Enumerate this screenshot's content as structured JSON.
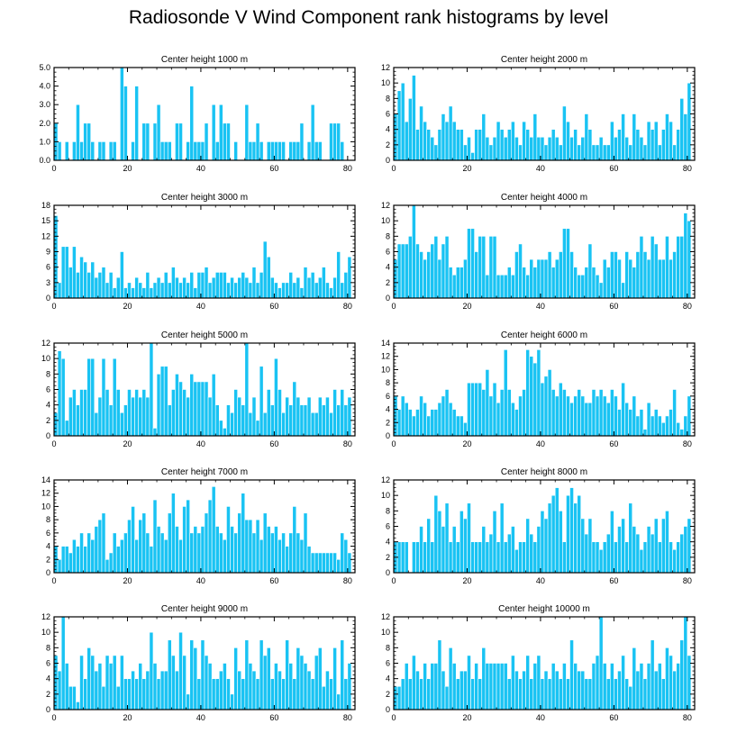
{
  "title": "Radiosonde V Wind Component rank histograms by level",
  "style": {
    "bar_color": "#19c3f3",
    "bar_edge": "#ffffff",
    "axis_color": "#000000"
  },
  "chart_data": [
    {
      "type": "bar",
      "title": "Center height 1000 m",
      "xlim": [
        0,
        82
      ],
      "ylim": [
        0,
        5
      ],
      "xticks": [
        0,
        20,
        40,
        60,
        80
      ],
      "yticks": [
        0,
        1,
        2,
        3,
        4,
        5
      ],
      "ytick_labels": [
        "0.0",
        "1.0",
        "2.0",
        "3.0",
        "4.0",
        "5.0"
      ],
      "values": [
        2,
        1,
        0,
        1,
        0,
        1,
        3,
        1,
        2,
        2,
        1,
        0,
        1,
        1,
        0,
        1,
        1,
        0,
        5,
        4,
        0,
        1,
        4,
        0,
        2,
        2,
        0,
        2,
        3,
        1,
        1,
        1,
        0,
        2,
        2,
        0,
        1,
        4,
        1,
        1,
        1,
        2,
        0,
        3,
        1,
        3,
        2,
        2,
        0,
        1,
        0,
        0,
        3,
        1,
        1,
        2,
        1,
        0,
        1,
        1,
        1,
        1,
        1,
        0,
        1,
        1,
        1,
        2,
        0,
        1,
        3,
        1,
        1,
        0,
        0,
        2,
        2,
        2,
        1,
        0,
        0
      ]
    },
    {
      "type": "bar",
      "title": "Center height 2000 m",
      "xlim": [
        0,
        82
      ],
      "ylim": [
        0,
        12
      ],
      "xticks": [
        0,
        20,
        40,
        60,
        80
      ],
      "yticks": [
        0,
        2,
        4,
        6,
        8,
        10,
        12
      ],
      "ytick_labels": [
        "0",
        "2",
        "4",
        "6",
        "8",
        "10",
        "12"
      ],
      "values": [
        6,
        9,
        10,
        5,
        8,
        11,
        4,
        7,
        5,
        4,
        3,
        2,
        4,
        6,
        5,
        7,
        5,
        4,
        4,
        2,
        3,
        1,
        4,
        4,
        6,
        3,
        2,
        3,
        5,
        4,
        3,
        4,
        5,
        3,
        2,
        5,
        4,
        3,
        6,
        3,
        3,
        2,
        3,
        4,
        3,
        2,
        7,
        5,
        3,
        4,
        2,
        3,
        6,
        4,
        2,
        2,
        3,
        2,
        2,
        5,
        3,
        4,
        6,
        3,
        2,
        6,
        4,
        3,
        2,
        5,
        4,
        5,
        2,
        4,
        6,
        5,
        2,
        4,
        8,
        6,
        10
      ]
    },
    {
      "type": "bar",
      "title": "Center height 3000 m",
      "xlim": [
        0,
        82
      ],
      "ylim": [
        0,
        18
      ],
      "xticks": [
        0,
        20,
        40,
        60,
        80
      ],
      "yticks": [
        0,
        3,
        6,
        9,
        12,
        15,
        18
      ],
      "ytick_labels": [
        "0",
        "3",
        "6",
        "9",
        "12",
        "15",
        "18"
      ],
      "values": [
        16,
        3,
        10,
        10,
        6,
        10,
        5,
        8,
        7,
        5,
        7,
        4,
        5,
        6,
        3,
        5,
        2,
        4,
        9,
        2,
        3,
        2,
        4,
        3,
        2,
        5,
        2,
        3,
        4,
        3,
        5,
        3,
        6,
        4,
        3,
        4,
        3,
        5,
        2,
        5,
        5,
        6,
        3,
        4,
        5,
        5,
        5,
        3,
        4,
        3,
        4,
        5,
        4,
        3,
        6,
        3,
        5,
        11,
        8,
        4,
        3,
        2,
        3,
        3,
        5,
        3,
        4,
        2,
        6,
        4,
        5,
        3,
        4,
        6,
        3,
        2,
        4,
        9,
        3,
        5,
        8
      ]
    },
    {
      "type": "bar",
      "title": "Center height 4000 m",
      "xlim": [
        0,
        82
      ],
      "ylim": [
        0,
        12
      ],
      "xticks": [
        0,
        20,
        40,
        60,
        80
      ],
      "yticks": [
        0,
        2,
        4,
        6,
        8,
        10,
        12
      ],
      "ytick_labels": [
        "0",
        "2",
        "4",
        "6",
        "8",
        "10",
        "12"
      ],
      "values": [
        5,
        7,
        7,
        7,
        8,
        12,
        7,
        6,
        5,
        6,
        7,
        8,
        5,
        7,
        8,
        4,
        3,
        4,
        4,
        5,
        9,
        9,
        6,
        8,
        8,
        3,
        8,
        8,
        3,
        3,
        3,
        4,
        3,
        6,
        7,
        4,
        3,
        5,
        4,
        5,
        5,
        5,
        6,
        4,
        5,
        6,
        9,
        9,
        6,
        4,
        3,
        3,
        4,
        7,
        4,
        3,
        2,
        5,
        4,
        6,
        6,
        5,
        2,
        6,
        5,
        4,
        6,
        8,
        6,
        5,
        8,
        7,
        5,
        5,
        8,
        5,
        6,
        8,
        8,
        11,
        10
      ]
    },
    {
      "type": "bar",
      "title": "Center height 5000 m",
      "xlim": [
        0,
        82
      ],
      "ylim": [
        0,
        12
      ],
      "xticks": [
        0,
        20,
        40,
        60,
        80
      ],
      "yticks": [
        0,
        2,
        4,
        6,
        8,
        10,
        12
      ],
      "ytick_labels": [
        "0",
        "2",
        "4",
        "6",
        "8",
        "10",
        "12"
      ],
      "values": [
        3,
        11,
        10,
        2,
        5,
        6,
        4,
        6,
        6,
        10,
        10,
        3,
        5,
        10,
        6,
        4,
        10,
        6,
        3,
        4,
        6,
        5,
        6,
        5,
        6,
        5,
        12,
        1,
        8,
        9,
        9,
        4,
        6,
        8,
        7,
        6,
        5,
        8,
        7,
        7,
        7,
        7,
        5,
        8,
        4,
        2,
        1,
        4,
        3,
        6,
        5,
        4,
        12,
        3,
        5,
        2,
        9,
        3,
        6,
        4,
        10,
        6,
        3,
        5,
        4,
        7,
        5,
        4,
        4,
        5,
        3,
        3,
        5,
        4,
        5,
        3,
        6,
        4,
        6,
        4,
        5
      ]
    },
    {
      "type": "bar",
      "title": "Center height 6000 m",
      "xlim": [
        0,
        82
      ],
      "ylim": [
        0,
        14
      ],
      "xticks": [
        0,
        20,
        40,
        60,
        80
      ],
      "yticks": [
        0,
        2,
        4,
        6,
        8,
        10,
        12,
        14
      ],
      "ytick_labels": [
        "0",
        "2",
        "4",
        "6",
        "8",
        "10",
        "12",
        "14"
      ],
      "values": [
        6,
        4,
        6,
        5,
        4,
        3,
        4,
        6,
        5,
        3,
        4,
        4,
        5,
        6,
        7,
        5,
        4,
        3,
        3,
        2,
        8,
        8,
        8,
        8,
        7,
        10,
        6,
        8,
        5,
        7,
        13,
        7,
        5,
        4,
        6,
        7,
        13,
        12,
        11,
        13,
        8,
        9,
        10,
        7,
        6,
        8,
        7,
        6,
        5,
        6,
        7,
        6,
        5,
        5,
        7,
        6,
        7,
        6,
        5,
        7,
        6,
        4,
        8,
        5,
        4,
        6,
        3,
        4,
        1,
        5,
        3,
        4,
        3,
        2,
        3,
        4,
        7,
        2,
        1,
        3,
        6
      ]
    },
    {
      "type": "bar",
      "title": "Center height 7000 m",
      "xlim": [
        0,
        82
      ],
      "ylim": [
        0,
        14
      ],
      "xticks": [
        0,
        20,
        40,
        60,
        80
      ],
      "yticks": [
        0,
        2,
        4,
        6,
        8,
        10,
        12,
        14
      ],
      "ytick_labels": [
        "0",
        "2",
        "4",
        "6",
        "8",
        "10",
        "12",
        "14"
      ],
      "values": [
        4,
        2,
        4,
        4,
        3,
        5,
        4,
        6,
        4,
        6,
        5,
        7,
        8,
        9,
        2,
        3,
        6,
        4,
        5,
        6,
        8,
        10,
        5,
        8,
        9,
        6,
        4,
        11,
        7,
        6,
        5,
        9,
        12,
        7,
        5,
        10,
        11,
        6,
        7,
        6,
        7,
        9,
        11,
        13,
        7,
        6,
        5,
        10,
        7,
        6,
        9,
        12,
        8,
        8,
        6,
        8,
        5,
        9,
        7,
        6,
        7,
        5,
        6,
        4,
        6,
        10,
        6,
        5,
        9,
        4,
        3,
        3,
        3,
        3,
        3,
        3,
        3,
        2,
        6,
        5,
        3
      ]
    },
    {
      "type": "bar",
      "title": "Center height 8000 m",
      "xlim": [
        0,
        82
      ],
      "ylim": [
        0,
        12
      ],
      "xticks": [
        0,
        20,
        40,
        60,
        80
      ],
      "yticks": [
        0,
        2,
        4,
        6,
        8,
        10,
        12
      ],
      "ytick_labels": [
        "0",
        "2",
        "4",
        "6",
        "8",
        "10",
        "12"
      ],
      "values": [
        4,
        4,
        4,
        4,
        0,
        4,
        4,
        6,
        4,
        7,
        4,
        10,
        8,
        6,
        9,
        4,
        6,
        4,
        8,
        7,
        9,
        4,
        4,
        4,
        6,
        4,
        5,
        8,
        4,
        9,
        4,
        5,
        6,
        3,
        4,
        4,
        7,
        5,
        4,
        6,
        8,
        7,
        9,
        10,
        11,
        8,
        4,
        10,
        11,
        9,
        10,
        7,
        5,
        7,
        4,
        4,
        3,
        4,
        5,
        8,
        4,
        6,
        7,
        4,
        9,
        6,
        5,
        3,
        4,
        6,
        5,
        7,
        4,
        7,
        8,
        4,
        3,
        4,
        5,
        6,
        7
      ]
    },
    {
      "type": "bar",
      "title": "Center height 9000 m",
      "xlim": [
        0,
        82
      ],
      "ylim": [
        0,
        12
      ],
      "xticks": [
        0,
        20,
        40,
        60,
        80
      ],
      "yticks": [
        0,
        2,
        4,
        6,
        8,
        10,
        12
      ],
      "ytick_labels": [
        "0",
        "2",
        "4",
        "6",
        "8",
        "10",
        "12"
      ],
      "values": [
        7,
        5,
        12,
        6,
        3,
        3,
        1,
        7,
        4,
        8,
        7,
        5,
        6,
        3,
        7,
        6,
        7,
        3,
        7,
        4,
        4,
        5,
        4,
        6,
        4,
        5,
        10,
        6,
        4,
        5,
        5,
        9,
        7,
        5,
        10,
        7,
        2,
        9,
        8,
        4,
        9,
        7,
        6,
        4,
        4,
        5,
        6,
        4,
        2,
        8,
        5,
        4,
        9,
        6,
        5,
        4,
        9,
        7,
        8,
        4,
        6,
        5,
        4,
        9,
        6,
        4,
        8,
        7,
        6,
        5,
        4,
        7,
        8,
        3,
        5,
        4,
        8,
        2,
        9,
        4,
        6
      ]
    },
    {
      "type": "bar",
      "title": "Center height 10000 m",
      "xlim": [
        0,
        82
      ],
      "ylim": [
        0,
        12
      ],
      "xticks": [
        0,
        20,
        40,
        60,
        80
      ],
      "yticks": [
        0,
        2,
        4,
        6,
        8,
        10,
        12
      ],
      "ytick_labels": [
        "0",
        "2",
        "4",
        "6",
        "8",
        "10",
        "12"
      ],
      "values": [
        3,
        3,
        4,
        6,
        4,
        7,
        5,
        4,
        6,
        4,
        6,
        6,
        9,
        5,
        3,
        8,
        6,
        4,
        5,
        5,
        7,
        4,
        6,
        4,
        8,
        6,
        6,
        6,
        6,
        6,
        6,
        4,
        7,
        5,
        4,
        5,
        7,
        4,
        6,
        7,
        4,
        5,
        4,
        6,
        5,
        4,
        6,
        4,
        9,
        6,
        5,
        5,
        4,
        4,
        6,
        7,
        12,
        6,
        4,
        6,
        4,
        5,
        7,
        4,
        3,
        8,
        5,
        6,
        4,
        6,
        9,
        5,
        6,
        4,
        8,
        7,
        5,
        6,
        9,
        12,
        7
      ]
    }
  ]
}
